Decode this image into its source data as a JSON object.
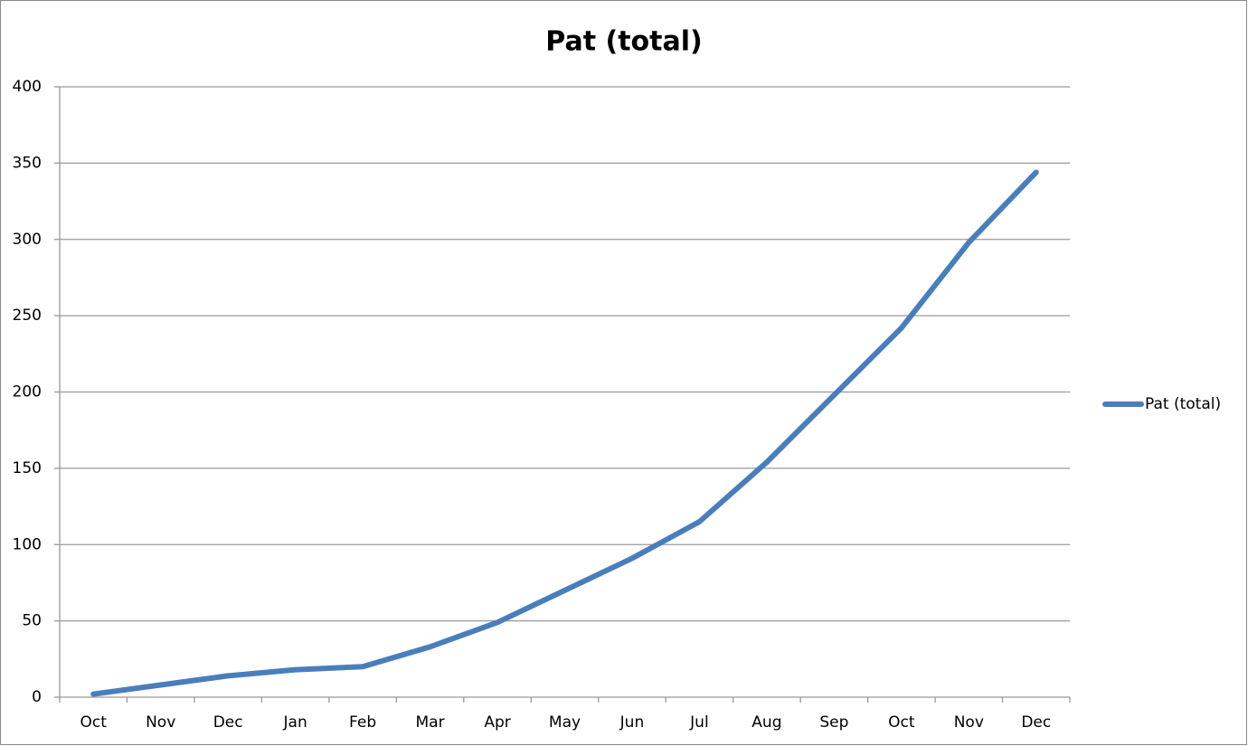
{
  "chart_data": {
    "type": "line",
    "title": "Pat (total)",
    "categories": [
      "Oct",
      "Nov",
      "Dec",
      "Jan",
      "Feb",
      "Mar",
      "Apr",
      "May",
      "Jun",
      "Jul",
      "Aug",
      "Sep",
      "Oct",
      "Nov",
      "Dec"
    ],
    "series": [
      {
        "name": "Pat (total)",
        "color": "#4a7ebb",
        "values": [
          2,
          8,
          14,
          18,
          20,
          33,
          49,
          70,
          91,
          115,
          154,
          198,
          242,
          298,
          344
        ]
      }
    ],
    "ylim": [
      0,
      400
    ],
    "yticks": [
      0,
      50,
      100,
      150,
      200,
      250,
      300,
      350,
      400
    ],
    "grid": true,
    "legend": "right"
  }
}
